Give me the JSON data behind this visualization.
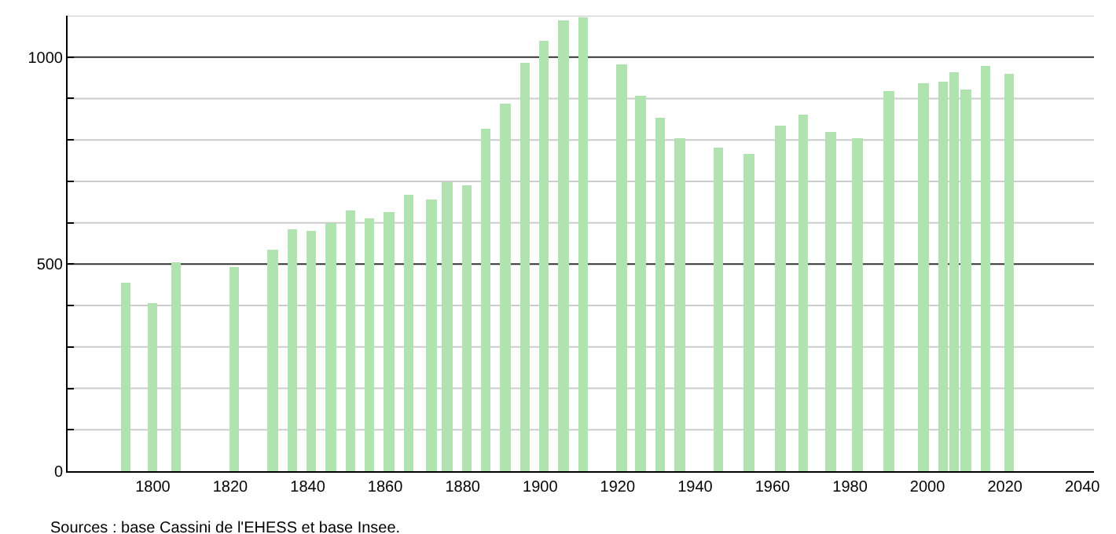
{
  "chart_data": {
    "type": "bar",
    "x": [
      1793,
      1800,
      1806,
      1821,
      1831,
      1836,
      1841,
      1846,
      1851,
      1856,
      1861,
      1866,
      1872,
      1876,
      1881,
      1886,
      1891,
      1896,
      1901,
      1906,
      1911,
      1921,
      1926,
      1931,
      1936,
      1946,
      1954,
      1962,
      1968,
      1975,
      1982,
      1990,
      1999,
      2004,
      2007,
      2010,
      2015,
      2021
    ],
    "values": [
      457,
      406,
      504,
      493,
      536,
      583,
      580,
      599,
      631,
      612,
      627,
      669,
      658,
      698,
      690,
      827,
      886,
      985,
      1039,
      1090,
      1095,
      983,
      907,
      853,
      803,
      780,
      765,
      834,
      861,
      818,
      804,
      917,
      937,
      941,
      965,
      921,
      977,
      961
    ],
    "color": "#b0e3b0",
    "xlim": [
      1778,
      2043
    ],
    "xticks": [
      1800,
      1820,
      1840,
      1860,
      1880,
      1900,
      1920,
      1940,
      1960,
      1980,
      2000,
      2020,
      2040
    ],
    "ylim": [
      0,
      1100
    ],
    "yticks": [
      0,
      {
        "value": 100,
        "label": null
      },
      {
        "value": 200,
        "label": null
      },
      {
        "value": 300,
        "label": null
      },
      {
        "value": 400,
        "label": null
      },
      500,
      {
        "value": 600,
        "label": null
      },
      {
        "value": 700,
        "label": null
      },
      {
        "value": 800,
        "label": null
      },
      {
        "value": 900,
        "label": null
      },
      1000,
      {
        "value": 1100,
        "label": null
      }
    ],
    "grid": "y",
    "legend": false,
    "annotations": [
      "Sources : base Cassini de l'EHESS et base Insee."
    ]
  }
}
